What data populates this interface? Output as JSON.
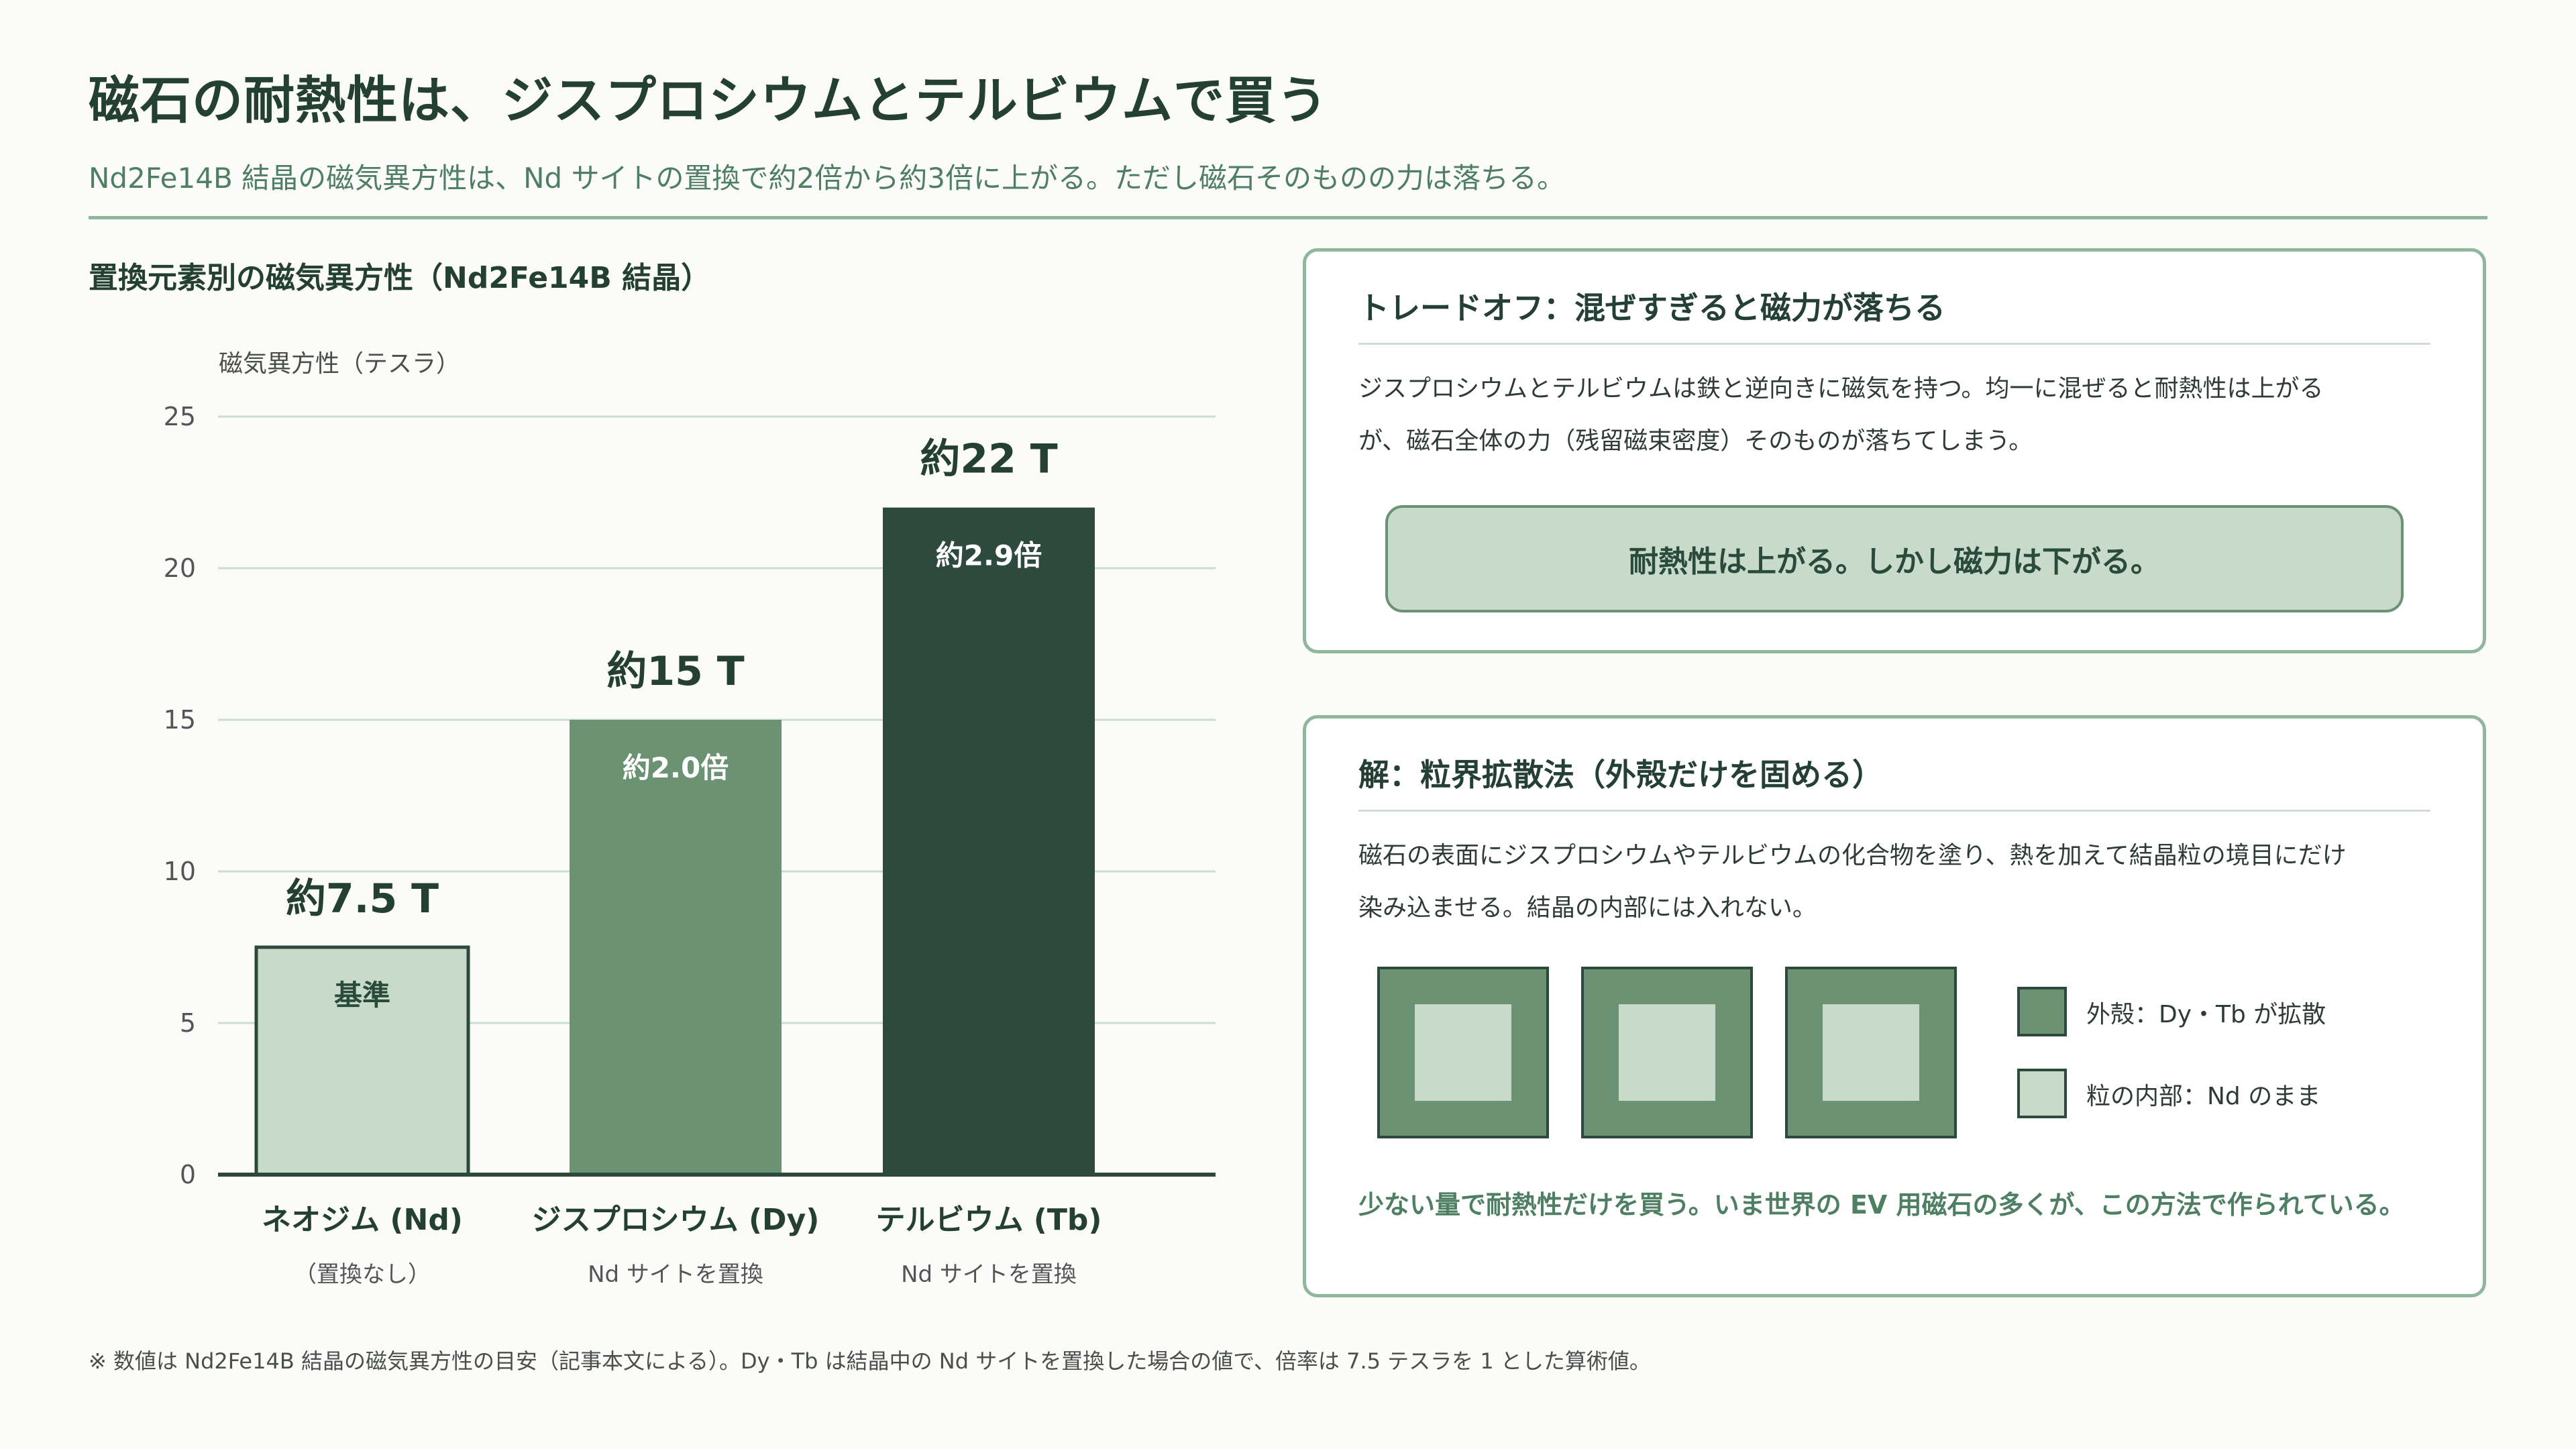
{
  "header": {
    "title": "磁石の耐熱性は、ジスプロシウムとテルビウムで買う",
    "subtitle": "Nd2Fe14B 結晶の磁気異方性は、Nd サイトの置換で約2倍から約3倍に上がる。ただし磁石そのものの力は落ちる。"
  },
  "chart_title": "置換元素別の磁気異方性（Nd2Fe14B 結晶）",
  "chart_data": {
    "type": "bar",
    "ylabel": "磁気異方性（テスラ）",
    "ylim": [
      0,
      25
    ],
    "yticks": [
      "0",
      "5",
      "10",
      "15",
      "20",
      "25"
    ],
    "categories": [
      "ネオジム (Nd)",
      "ジスプロシウム (Dy)",
      "テルビウム (Tb)"
    ],
    "sublabels": [
      "（置換なし）",
      "Nd サイトを置換",
      "Nd サイトを置換"
    ],
    "values": [
      7.5,
      15,
      22
    ],
    "value_labels": [
      "約7.5 T",
      "約15 T",
      "約22 T"
    ],
    "inner_labels": [
      "基準",
      "約2.0倍",
      "約2.9倍"
    ],
    "colors": [
      "#c8dbcb",
      "#6b9273",
      "#2e4a3e"
    ],
    "inner_label_colors": [
      "#2a4a3c",
      "#ffffff",
      "#ffffff"
    ],
    "grid": true
  },
  "panel1": {
    "heading": "トレードオフ：混ぜすぎると磁力が落ちる",
    "body_line1": "ジスプロシウムとテルビウムは鉄と逆向きに磁気を持つ。均一に混ぜると耐熱性は上がる",
    "body_line2": "が、磁石全体の力（残留磁束密度）そのものが落ちてしまう。",
    "callout": "耐熱性は上がる。しかし磁力は下がる。"
  },
  "panel2": {
    "heading": "解：粒界拡散法（外殻だけを固める）",
    "body_line1": "磁石の表面にジスプロシウムやテルビウムの化合物を塗り、熱を加えて結晶粒の境目にだけ",
    "body_line2": "染み込ませる。結晶の内部には入れない。",
    "legend_shell": "外殻：Dy・Tb が拡散",
    "legend_core": "粒の内部：Nd のまま",
    "footer": "少ない量で耐熱性だけを買う。いま世界の EV 用磁石の多くが、この方法で作られている。",
    "colors": {
      "shell": "#6b9273",
      "core": "#c8dbcb"
    }
  },
  "footnote": "※ 数値は Nd2Fe14B 結晶の磁気異方性の目安（記事本文による）。Dy・Tb は結晶中の Nd サイトを置換した場合の値で、倍率は 7.5 テスラを 1 とした算術値。"
}
